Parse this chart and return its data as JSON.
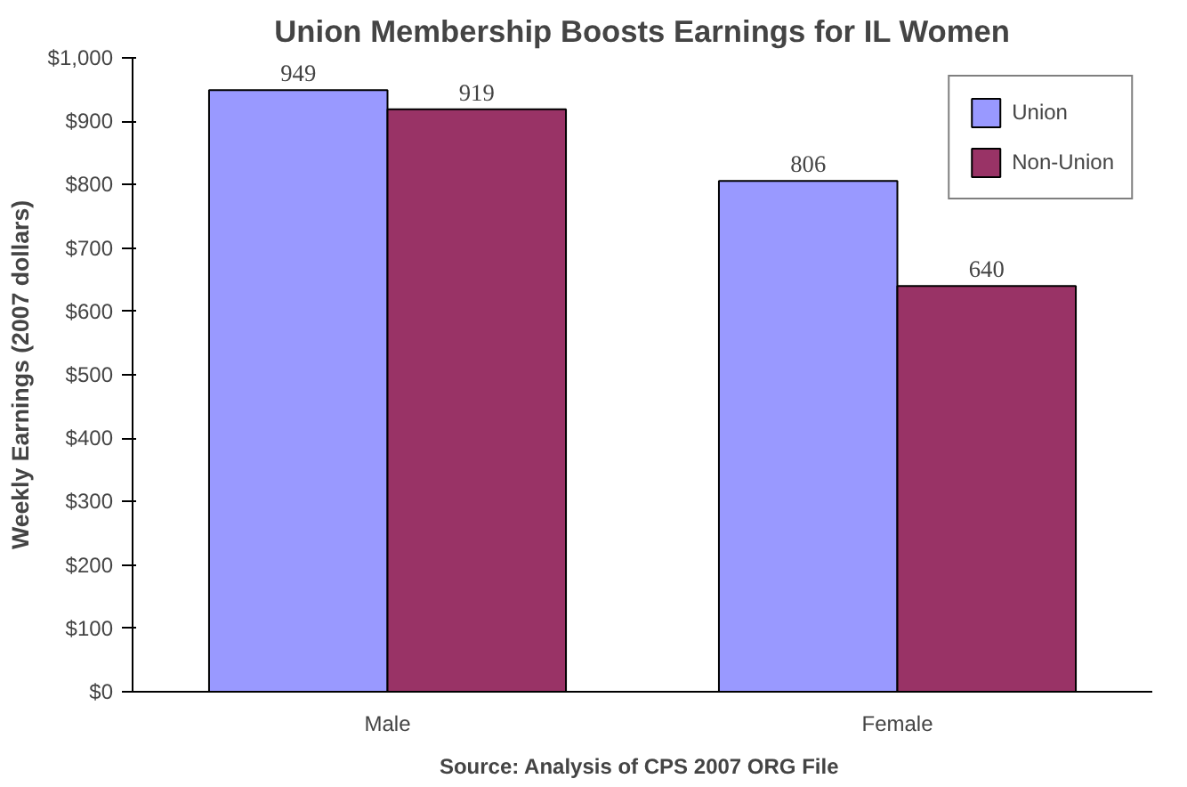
{
  "chart_data": {
    "type": "bar",
    "title": "Union Membership Boosts Earnings for IL Women",
    "ylabel": "Weekly Earnings (2007 dollars)",
    "categories": [
      "Male",
      "Female"
    ],
    "series": [
      {
        "name": "Union",
        "color": "#9999ff",
        "values": [
          949,
          806
        ]
      },
      {
        "name": "Non-Union",
        "color": "#993366",
        "values": [
          919,
          640
        ]
      }
    ],
    "ylim": [
      0,
      1000
    ],
    "yticks": [
      {
        "value": 0,
        "label": "$0"
      },
      {
        "value": 100,
        "label": "$100"
      },
      {
        "value": 200,
        "label": "$200"
      },
      {
        "value": 300,
        "label": "$300"
      },
      {
        "value": 400,
        "label": "$400"
      },
      {
        "value": 500,
        "label": "$500"
      },
      {
        "value": 600,
        "label": "$600"
      },
      {
        "value": 700,
        "label": "$700"
      },
      {
        "value": 800,
        "label": "$800"
      },
      {
        "value": 900,
        "label": "$900"
      },
      {
        "value": 1000,
        "label": "$1,000"
      }
    ],
    "data_labels": true,
    "legend": "top right",
    "grid": false,
    "annotations": [
      "Source:  Analysis of CPS 2007 ORG File"
    ]
  }
}
